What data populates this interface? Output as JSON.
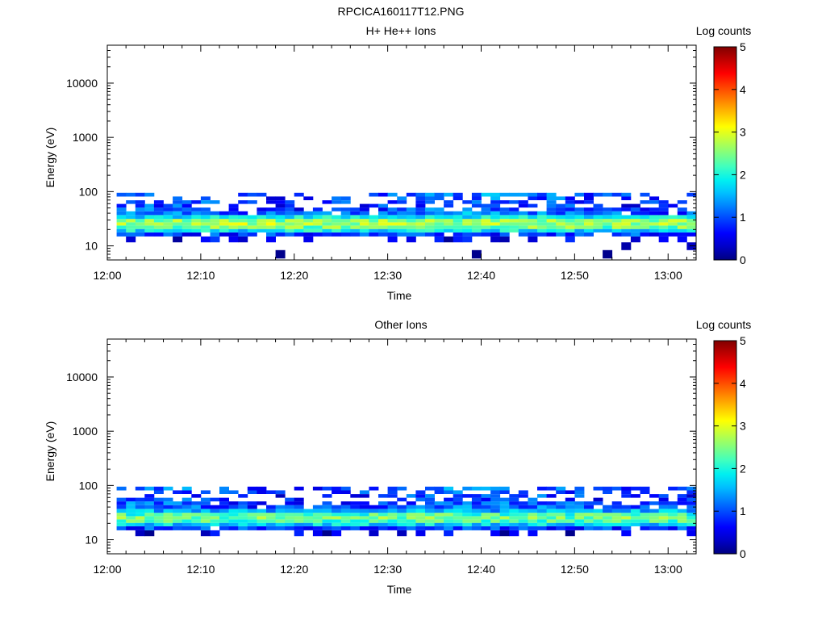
{
  "figure": {
    "title": "RPCICA160117T12.PNG"
  },
  "colormap": [
    "#000080",
    "#0000c8",
    "#0000ff",
    "#0040ff",
    "#0080ff",
    "#00bfff",
    "#00f0f0",
    "#40ffbf",
    "#80ff80",
    "#c0ff40",
    "#ffff00",
    "#ffc000",
    "#ff8000",
    "#ff4000",
    "#ff0000",
    "#c00000",
    "#800000"
  ],
  "chart_data": [
    {
      "type": "heatmap",
      "title": "H+ He++ Ions",
      "xlabel": "Time",
      "ylabel": "Energy (eV)",
      "colorbar_label": "Log counts",
      "x_ticks": [
        "12:00",
        "12:10",
        "12:20",
        "12:30",
        "12:40",
        "12:50",
        "13:00"
      ],
      "y_ticks": [
        "10",
        "100",
        "1000",
        "10000"
      ],
      "y_scale": "log",
      "xlim": [
        "12:00",
        "13:03"
      ],
      "ylim": [
        5.5,
        50000
      ],
      "clim": [
        0,
        5
      ],
      "colorbar_ticks": [
        "0",
        "1",
        "2",
        "3",
        "4",
        "5"
      ],
      "time_start": "12:00",
      "bin_minutes": 1,
      "energy_bins_eV": [
        7,
        10,
        13.5,
        16.5,
        19,
        22,
        25.5,
        29,
        34,
        40,
        47,
        55,
        64,
        75,
        88
      ],
      "profile": [
        {
          "e": 7,
          "base": -0.5,
          "p": 0.03
        },
        {
          "e": 10,
          "base": 0.3,
          "p": 0.06
        },
        {
          "e": 13.5,
          "base": 0.5,
          "p": 0.35
        },
        {
          "e": 16.5,
          "base": 0.9,
          "p": 0.95
        },
        {
          "e": 19,
          "base": 1.8,
          "p": 1.0
        },
        {
          "e": 22,
          "base": 2.4,
          "p": 1.0
        },
        {
          "e": 25.5,
          "base": 2.7,
          "p": 1.0
        },
        {
          "e": 29,
          "base": 2.5,
          "p": 1.0
        },
        {
          "e": 34,
          "base": 1.8,
          "p": 1.0
        },
        {
          "e": 40,
          "base": 1.1,
          "p": 0.85
        },
        {
          "e": 47,
          "base": 0.9,
          "p": 0.6
        },
        {
          "e": 55,
          "base": 0.8,
          "p": 0.45
        },
        {
          "e": 64,
          "base": 0.9,
          "p": 0.4
        },
        {
          "e": 75,
          "base": 0.9,
          "p": 0.35
        },
        {
          "e": 88,
          "base": 1.0,
          "p": 0.45
        }
      ],
      "seed": 11
    },
    {
      "type": "heatmap",
      "title": "Other Ions",
      "xlabel": "Time",
      "ylabel": "Energy (eV)",
      "colorbar_label": "Log counts",
      "x_ticks": [
        "12:00",
        "12:10",
        "12:20",
        "12:30",
        "12:40",
        "12:50",
        "13:00"
      ],
      "y_ticks": [
        "10",
        "100",
        "1000",
        "10000"
      ],
      "y_scale": "log",
      "xlim": [
        "12:00",
        "13:03"
      ],
      "ylim": [
        5.5,
        50000
      ],
      "clim": [
        0,
        5
      ],
      "colorbar_ticks": [
        "0",
        "1",
        "2",
        "3",
        "4",
        "5"
      ],
      "time_start": "12:00",
      "bin_minutes": 1,
      "energy_bins_eV": [
        7,
        10,
        13.5,
        16.5,
        19,
        22,
        25.5,
        29,
        34,
        40,
        47,
        55,
        64,
        75,
        88
      ],
      "profile": [
        {
          "e": 7,
          "base": -0.5,
          "p": 0.02
        },
        {
          "e": 10,
          "base": 0.3,
          "p": 0.04
        },
        {
          "e": 13.5,
          "base": 0.4,
          "p": 0.25
        },
        {
          "e": 16.5,
          "base": 0.9,
          "p": 0.95
        },
        {
          "e": 19,
          "base": 1.7,
          "p": 1.0
        },
        {
          "e": 22,
          "base": 2.2,
          "p": 1.0
        },
        {
          "e": 25.5,
          "base": 2.4,
          "p": 1.0
        },
        {
          "e": 29,
          "base": 2.2,
          "p": 1.0
        },
        {
          "e": 34,
          "base": 1.5,
          "p": 1.0
        },
        {
          "e": 40,
          "base": 1.0,
          "p": 0.85
        },
        {
          "e": 47,
          "base": 0.9,
          "p": 0.6
        },
        {
          "e": 55,
          "base": 0.8,
          "p": 0.45
        },
        {
          "e": 64,
          "base": 0.8,
          "p": 0.4
        },
        {
          "e": 75,
          "base": 0.9,
          "p": 0.35
        },
        {
          "e": 88,
          "base": 1.0,
          "p": 0.45
        }
      ],
      "seed": 29
    }
  ]
}
